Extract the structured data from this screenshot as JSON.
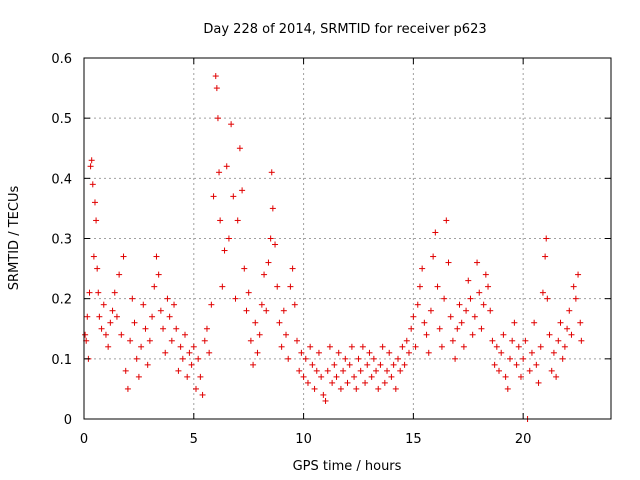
{
  "chart_data": {
    "type": "scatter",
    "title": "Day 228 of 2014, SRMTID for receiver p623",
    "xlabel": "GPS time / hours",
    "ylabel": "SRMTID / TECUs",
    "xlim": [
      0,
      24
    ],
    "ylim": [
      0,
      0.6
    ],
    "xticks": [
      0,
      5,
      10,
      15,
      20
    ],
    "yticks": [
      0,
      0.1,
      0.2,
      0.3,
      0.4,
      0.5,
      0.6
    ],
    "xtick_labels": [
      "0",
      "5",
      "10",
      "15",
      "20"
    ],
    "ytick_labels": [
      "0",
      "0.1",
      "0.2",
      "0.3",
      "0.4",
      "0.5",
      "0.6"
    ],
    "grid": true,
    "marker": "plus",
    "color": "#e00000",
    "series": [
      {
        "name": "SRMTID",
        "points": [
          [
            0.05,
            0.14
          ],
          [
            0.1,
            0.13
          ],
          [
            0.15,
            0.17
          ],
          [
            0.2,
            0.1
          ],
          [
            0.25,
            0.21
          ],
          [
            0.3,
            0.42
          ],
          [
            0.35,
            0.43
          ],
          [
            0.4,
            0.39
          ],
          [
            0.45,
            0.27
          ],
          [
            0.5,
            0.36
          ],
          [
            0.55,
            0.33
          ],
          [
            0.6,
            0.25
          ],
          [
            0.65,
            0.21
          ],
          [
            0.7,
            0.17
          ],
          [
            0.8,
            0.15
          ],
          [
            0.9,
            0.19
          ],
          [
            1.0,
            0.14
          ],
          [
            1.1,
            0.12
          ],
          [
            1.2,
            0.16
          ],
          [
            1.3,
            0.18
          ],
          [
            1.4,
            0.21
          ],
          [
            1.5,
            0.17
          ],
          [
            1.6,
            0.24
          ],
          [
            1.7,
            0.14
          ],
          [
            1.8,
            0.27
          ],
          [
            1.9,
            0.08
          ],
          [
            2.0,
            0.05
          ],
          [
            2.1,
            0.13
          ],
          [
            2.2,
            0.2
          ],
          [
            2.3,
            0.16
          ],
          [
            2.4,
            0.1
          ],
          [
            2.5,
            0.07
          ],
          [
            2.6,
            0.12
          ],
          [
            2.7,
            0.19
          ],
          [
            2.8,
            0.15
          ],
          [
            2.9,
            0.09
          ],
          [
            3.0,
            0.13
          ],
          [
            3.1,
            0.17
          ],
          [
            3.2,
            0.22
          ],
          [
            3.3,
            0.27
          ],
          [
            3.4,
            0.24
          ],
          [
            3.5,
            0.18
          ],
          [
            3.6,
            0.15
          ],
          [
            3.7,
            0.11
          ],
          [
            3.8,
            0.2
          ],
          [
            3.9,
            0.17
          ],
          [
            4.0,
            0.13
          ],
          [
            4.1,
            0.19
          ],
          [
            4.2,
            0.15
          ],
          [
            4.3,
            0.08
          ],
          [
            4.4,
            0.12
          ],
          [
            4.5,
            0.1
          ],
          [
            4.6,
            0.14
          ],
          [
            4.7,
            0.07
          ],
          [
            4.8,
            0.11
          ],
          [
            4.9,
            0.09
          ],
          [
            5.0,
            0.12
          ],
          [
            5.1,
            0.05
          ],
          [
            5.2,
            0.1
          ],
          [
            5.3,
            0.07
          ],
          [
            5.4,
            0.04
          ],
          [
            5.5,
            0.13
          ],
          [
            5.6,
            0.15
          ],
          [
            5.7,
            0.11
          ],
          [
            5.8,
            0.19
          ],
          [
            5.9,
            0.37
          ],
          [
            6.0,
            0.57
          ],
          [
            6.05,
            0.55
          ],
          [
            6.1,
            0.5
          ],
          [
            6.15,
            0.41
          ],
          [
            6.2,
            0.33
          ],
          [
            6.3,
            0.22
          ],
          [
            6.4,
            0.28
          ],
          [
            6.5,
            0.42
          ],
          [
            6.6,
            0.3
          ],
          [
            6.7,
            0.49
          ],
          [
            6.8,
            0.37
          ],
          [
            6.9,
            0.2
          ],
          [
            7.0,
            0.33
          ],
          [
            7.1,
            0.45
          ],
          [
            7.2,
            0.38
          ],
          [
            7.3,
            0.25
          ],
          [
            7.4,
            0.18
          ],
          [
            7.5,
            0.21
          ],
          [
            7.6,
            0.13
          ],
          [
            7.7,
            0.09
          ],
          [
            7.8,
            0.16
          ],
          [
            7.9,
            0.11
          ],
          [
            8.0,
            0.14
          ],
          [
            8.1,
            0.19
          ],
          [
            8.2,
            0.24
          ],
          [
            8.3,
            0.18
          ],
          [
            8.4,
            0.26
          ],
          [
            8.5,
            0.3
          ],
          [
            8.55,
            0.41
          ],
          [
            8.6,
            0.35
          ],
          [
            8.7,
            0.29
          ],
          [
            8.8,
            0.22
          ],
          [
            8.9,
            0.16
          ],
          [
            9.0,
            0.12
          ],
          [
            9.1,
            0.18
          ],
          [
            9.2,
            0.14
          ],
          [
            9.3,
            0.1
          ],
          [
            9.4,
            0.22
          ],
          [
            9.5,
            0.25
          ],
          [
            9.6,
            0.19
          ],
          [
            9.7,
            0.13
          ],
          [
            9.8,
            0.08
          ],
          [
            9.9,
            0.11
          ],
          [
            10.0,
            0.07
          ],
          [
            10.1,
            0.1
          ],
          [
            10.2,
            0.06
          ],
          [
            10.3,
            0.12
          ],
          [
            10.4,
            0.09
          ],
          [
            10.5,
            0.05
          ],
          [
            10.6,
            0.08
          ],
          [
            10.7,
            0.11
          ],
          [
            10.8,
            0.07
          ],
          [
            10.9,
            0.04
          ],
          [
            11.0,
            0.03
          ],
          [
            11.1,
            0.08
          ],
          [
            11.2,
            0.12
          ],
          [
            11.3,
            0.06
          ],
          [
            11.4,
            0.09
          ],
          [
            11.5,
            0.07
          ],
          [
            11.6,
            0.11
          ],
          [
            11.7,
            0.05
          ],
          [
            11.8,
            0.08
          ],
          [
            11.9,
            0.1
          ],
          [
            12.0,
            0.06
          ],
          [
            12.1,
            0.09
          ],
          [
            12.2,
            0.12
          ],
          [
            12.3,
            0.07
          ],
          [
            12.4,
            0.05
          ],
          [
            12.5,
            0.1
          ],
          [
            12.6,
            0.08
          ],
          [
            12.7,
            0.12
          ],
          [
            12.8,
            0.06
          ],
          [
            12.9,
            0.09
          ],
          [
            13.0,
            0.11
          ],
          [
            13.1,
            0.07
          ],
          [
            13.2,
            0.1
          ],
          [
            13.3,
            0.08
          ],
          [
            13.4,
            0.05
          ],
          [
            13.5,
            0.09
          ],
          [
            13.6,
            0.12
          ],
          [
            13.7,
            0.06
          ],
          [
            13.8,
            0.08
          ],
          [
            13.9,
            0.11
          ],
          [
            14.0,
            0.07
          ],
          [
            14.1,
            0.09
          ],
          [
            14.2,
            0.05
          ],
          [
            14.3,
            0.1
          ],
          [
            14.4,
            0.08
          ],
          [
            14.5,
            0.12
          ],
          [
            14.6,
            0.09
          ],
          [
            14.7,
            0.13
          ],
          [
            14.8,
            0.11
          ],
          [
            14.9,
            0.15
          ],
          [
            15.0,
            0.17
          ],
          [
            15.1,
            0.12
          ],
          [
            15.2,
            0.19
          ],
          [
            15.3,
            0.22
          ],
          [
            15.4,
            0.25
          ],
          [
            15.5,
            0.16
          ],
          [
            15.6,
            0.14
          ],
          [
            15.7,
            0.11
          ],
          [
            15.8,
            0.18
          ],
          [
            15.9,
            0.27
          ],
          [
            16.0,
            0.31
          ],
          [
            16.1,
            0.22
          ],
          [
            16.2,
            0.15
          ],
          [
            16.3,
            0.12
          ],
          [
            16.4,
            0.2
          ],
          [
            16.5,
            0.33
          ],
          [
            16.6,
            0.26
          ],
          [
            16.7,
            0.17
          ],
          [
            16.8,
            0.13
          ],
          [
            16.9,
            0.1
          ],
          [
            17.0,
            0.15
          ],
          [
            17.1,
            0.19
          ],
          [
            17.2,
            0.16
          ],
          [
            17.3,
            0.12
          ],
          [
            17.4,
            0.18
          ],
          [
            17.5,
            0.23
          ],
          [
            17.6,
            0.2
          ],
          [
            17.7,
            0.14
          ],
          [
            17.8,
            0.17
          ],
          [
            17.9,
            0.26
          ],
          [
            18.0,
            0.21
          ],
          [
            18.1,
            0.15
          ],
          [
            18.2,
            0.19
          ],
          [
            18.3,
            0.24
          ],
          [
            18.4,
            0.22
          ],
          [
            18.5,
            0.18
          ],
          [
            18.6,
            0.13
          ],
          [
            18.7,
            0.09
          ],
          [
            18.8,
            0.12
          ],
          [
            18.9,
            0.08
          ],
          [
            19.0,
            0.11
          ],
          [
            19.1,
            0.14
          ],
          [
            19.2,
            0.07
          ],
          [
            19.3,
            0.05
          ],
          [
            19.4,
            0.1
          ],
          [
            19.5,
            0.13
          ],
          [
            19.6,
            0.16
          ],
          [
            19.7,
            0.09
          ],
          [
            19.8,
            0.12
          ],
          [
            19.9,
            0.07
          ],
          [
            20.0,
            0.1
          ],
          [
            20.1,
            0.13
          ],
          [
            20.2,
            0.0
          ],
          [
            20.3,
            0.08
          ],
          [
            20.4,
            0.11
          ],
          [
            20.5,
            0.16
          ],
          [
            20.6,
            0.09
          ],
          [
            20.7,
            0.06
          ],
          [
            20.8,
            0.12
          ],
          [
            20.9,
            0.21
          ],
          [
            21.0,
            0.27
          ],
          [
            21.05,
            0.3
          ],
          [
            21.1,
            0.2
          ],
          [
            21.2,
            0.14
          ],
          [
            21.3,
            0.08
          ],
          [
            21.4,
            0.11
          ],
          [
            21.5,
            0.07
          ],
          [
            21.6,
            0.13
          ],
          [
            21.7,
            0.16
          ],
          [
            21.8,
            0.1
          ],
          [
            21.9,
            0.12
          ],
          [
            22.0,
            0.15
          ],
          [
            22.1,
            0.18
          ],
          [
            22.2,
            0.14
          ],
          [
            22.3,
            0.22
          ],
          [
            22.4,
            0.2
          ],
          [
            22.5,
            0.24
          ],
          [
            22.6,
            0.16
          ],
          [
            22.65,
            0.13
          ]
        ]
      }
    ]
  }
}
